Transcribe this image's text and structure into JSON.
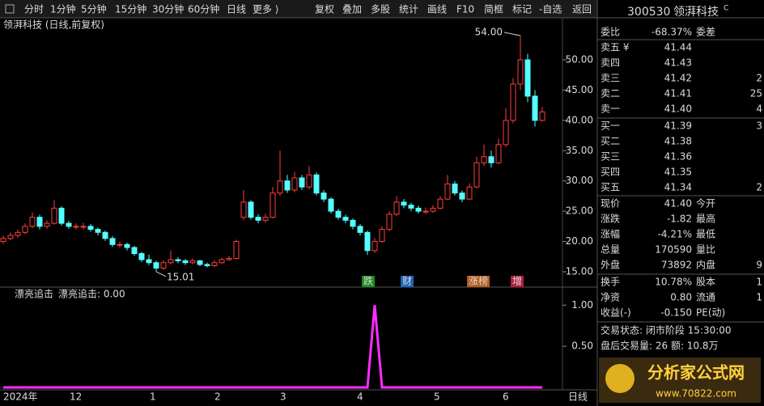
{
  "toolbar": {
    "left": [
      "分时",
      "1分钟",
      "5分钟",
      "15分钟",
      "30分钟",
      "60分钟",
      "日线",
      "更多 ⟩"
    ],
    "active": "日线",
    "right": [
      "复权",
      "叠加",
      "多股",
      "统计",
      "画线",
      "F10",
      "简框",
      "标记",
      "-自选",
      "返回"
    ]
  },
  "main_chart": {
    "type": "candlestick",
    "title": "领湃科技 (日线,前复权)",
    "up_color": "#ff3c3c",
    "down_color": "#54ffff",
    "ylim": [
      13.13,
      54.54
    ],
    "yticks": [
      {
        "value": 15,
        "label": "15.00"
      },
      {
        "value": 20,
        "label": "20.00"
      },
      {
        "value": 25,
        "label": "25.00"
      },
      {
        "value": 30,
        "label": "30.00"
      },
      {
        "value": 35,
        "label": "35.00"
      },
      {
        "value": 40,
        "label": "40.00"
      },
      {
        "value": 45,
        "label": "45.00"
      },
      {
        "value": 50,
        "label": "50.00"
      }
    ],
    "high_mark": {
      "value": 54,
      "label": "54.00"
    },
    "low_mark": {
      "value": 15.01,
      "label": "15.01"
    },
    "open": [
      20,
      20.5,
      21,
      21.5,
      22.5,
      24,
      22.5,
      23,
      25.5,
      23,
      22.5,
      22.5,
      22.5,
      22,
      21.5,
      20.5,
      19.5,
      19.5,
      19,
      18,
      17,
      16.5,
      15.6,
      16.5,
      17,
      16.8,
      16.5,
      16.8,
      16.2,
      16,
      16.5,
      17,
      17.2,
      24,
      26.5,
      24,
      23.5,
      24,
      28,
      30,
      28.5,
      30.5,
      29,
      31,
      28,
      27,
      25,
      24,
      23.5,
      22.5,
      21.5,
      18.5,
      20,
      22,
      24.5,
      26.5,
      26,
      25.5,
      25,
      25,
      25.5,
      27,
      29.5,
      28,
      27,
      29,
      33,
      34,
      33,
      36,
      40,
      46,
      50,
      44,
      40
    ],
    "close": [
      20.5,
      21,
      21.5,
      22.5,
      24,
      22.5,
      23,
      25.5,
      23,
      22.5,
      22.5,
      22.5,
      22,
      21.5,
      20.5,
      19.5,
      19.5,
      19,
      18,
      17,
      16.5,
      15.6,
      16.5,
      17,
      16.8,
      16.5,
      16.8,
      16.2,
      16,
      16.5,
      17,
      17.2,
      20,
      26.5,
      24,
      23.5,
      24,
      28,
      30,
      28.5,
      30.5,
      29,
      31,
      28,
      27,
      25,
      24,
      23.5,
      22.5,
      21.5,
      18.5,
      20,
      22,
      24.5,
      26.5,
      26,
      25.5,
      25,
      25,
      25.5,
      27,
      29.5,
      28,
      27,
      29,
      33,
      34,
      33,
      36,
      40,
      46,
      50,
      44,
      40,
      41.4
    ],
    "high": [
      21,
      21.5,
      22,
      23,
      24.8,
      24.4,
      23.5,
      26.8,
      25.8,
      23.4,
      23,
      23.1,
      22.9,
      22.3,
      21.8,
      20.9,
      20,
      19.8,
      19.3,
      18.3,
      17.8,
      16.8,
      16.9,
      18.5,
      17.4,
      17.1,
      17.2,
      17,
      16.5,
      16.9,
      17.3,
      17.6,
      20.3,
      28.5,
      26.8,
      24.5,
      24.6,
      29,
      35,
      31,
      31.5,
      31,
      32.5,
      31.4,
      28.5,
      27.3,
      25.4,
      24.4,
      23.8,
      22.9,
      21.8,
      20.6,
      22.5,
      25,
      27.5,
      27,
      26.4,
      25.9,
      25.6,
      26,
      27.5,
      31,
      30,
      28.4,
      29.6,
      34,
      36,
      35,
      37,
      42,
      47,
      54,
      51,
      45,
      42.2
    ],
    "low": [
      19.6,
      20.2,
      20.6,
      21.2,
      22.2,
      22,
      22.1,
      22.8,
      22.6,
      22.1,
      22,
      22,
      21.6,
      21,
      20.1,
      19.1,
      19,
      18.5,
      17.6,
      16.6,
      16.1,
      15.01,
      15.3,
      16.2,
      16.4,
      16.1,
      16.2,
      15.9,
      15.7,
      15.8,
      16.3,
      16.8,
      17,
      23.5,
      23.6,
      23,
      23.1,
      23.8,
      27.5,
      28,
      28.1,
      28.5,
      28.6,
      27.6,
      26.5,
      24.6,
      23.6,
      23,
      22,
      21,
      17.8,
      18.1,
      19.8,
      21.7,
      24.2,
      25.5,
      25,
      24.6,
      24.5,
      24.7,
      25.3,
      26.8,
      27.6,
      26.5,
      26.8,
      28.8,
      32.5,
      32.2,
      32.8,
      35.6,
      39.5,
      45,
      43,
      39,
      39.8
    ],
    "events": [
      {
        "text": "跌",
        "color": "#1e8c1e"
      },
      {
        "text": "财",
        "color": "#1e64b4"
      },
      {
        "text": "涨榜",
        "color": "#b45a1e"
      },
      {
        "text": "增",
        "color": "#b41e3c"
      }
    ]
  },
  "indicator": {
    "type": "line",
    "name": "漂亮追击",
    "current": "漂亮追击: 0.00",
    "color": "#ff2cff",
    "ylim": [
      -0.03,
      1.17
    ],
    "yticks": [
      {
        "value": 0.5,
        "label": "0.50"
      },
      {
        "value": 1,
        "label": "1.00"
      }
    ],
    "values": [
      0,
      0,
      0,
      0,
      0,
      0,
      0,
      0,
      0,
      0,
      0,
      0,
      0,
      0,
      0,
      0,
      0,
      0,
      0,
      0,
      0,
      0,
      0,
      0,
      0,
      0,
      0,
      0,
      0,
      0,
      0,
      0,
      0,
      0,
      0,
      0,
      0,
      0,
      0,
      0,
      0,
      0,
      0,
      0,
      0,
      0,
      0,
      0,
      0,
      0,
      0,
      1,
      0,
      0,
      0,
      0,
      0,
      0,
      0,
      0,
      0,
      0,
      0,
      0,
      0,
      0,
      0,
      0,
      0,
      0,
      0,
      0,
      0,
      0,
      0
    ]
  },
  "x_axis": [
    "2024年",
    "12",
    "1",
    "2",
    "3",
    "4",
    "5",
    "6",
    "日线"
  ],
  "quote": {
    "code": "300530",
    "name": "领湃科技",
    "flag": "C",
    "order": {
      "label": "委比",
      "value": "-68.37%",
      "label2": "委差"
    },
    "book": [
      {
        "label": "卖五 ¥",
        "price": "41.44"
      },
      {
        "label": "卖四",
        "price": "41.43"
      },
      {
        "label": "卖三",
        "price": "41.42",
        "vol": "2"
      },
      {
        "label": "卖二",
        "price": "41.41",
        "vol": "25"
      },
      {
        "label": "卖一",
        "price": "41.40",
        "vol": "4"
      },
      {
        "label": "买一",
        "price": "41.39",
        "vol": "3"
      },
      {
        "label": "买二",
        "price": "41.38"
      },
      {
        "label": "买三",
        "price": "41.36"
      },
      {
        "label": "买四",
        "price": "41.35"
      },
      {
        "label": "买五",
        "price": "41.34",
        "vol": "2"
      }
    ],
    "stats": [
      {
        "label": "现价",
        "value": "41.40",
        "color": "#3cd23c",
        "label2": "今开"
      },
      {
        "label": "涨跌",
        "value": "-1.82",
        "color": "#3cd23c",
        "label2": "最高"
      },
      {
        "label": "涨幅",
        "value": "-4.21%",
        "color": "#3cd23c",
        "label2": "最低"
      },
      {
        "label": "总量",
        "value": "170590",
        "color": "#e6c83c",
        "label2": "量比"
      },
      {
        "label": "外盘",
        "value": "73892",
        "color": "#ff3c3c",
        "label2": "内盘",
        "value2": "9"
      },
      {
        "label": "换手",
        "value": "10.78%",
        "color": "#e6e6e6",
        "label2": "股本",
        "value2": "1"
      },
      {
        "label": "净资",
        "value": "0.80",
        "color": "#e6e6e6",
        "label2": "流通",
        "value2": "1"
      },
      {
        "label": "收益(-)",
        "value": "-0.150",
        "color": "#e6e6e6",
        "label2": "PE(动)"
      }
    ],
    "status": "交易状态: 闭市阶段 15:30:00",
    "after_hours": "盘后交易量: 26  额: 10.8万"
  },
  "logo": {
    "title": "分析家公式网",
    "url": "www.70822.com"
  }
}
